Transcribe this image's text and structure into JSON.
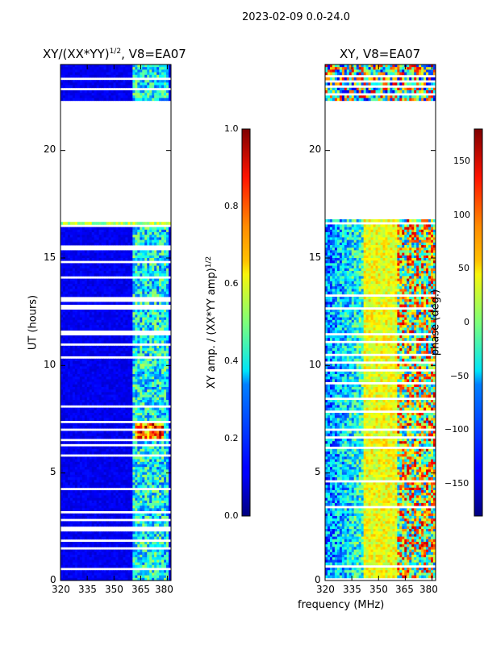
{
  "figure_title": "2023-02-09 0.0-24.0",
  "chart_data": [
    {
      "type": "heatmap",
      "title": "XY/(XX*YY)^{1/2}, V8=EA07",
      "title_base": "XY/(XX*YY)",
      "title_sup": "1/2",
      "title_suffix": ", V8=EA07",
      "xlabel": "",
      "ylabel": "UT (hours)",
      "xlim": [
        320,
        382
      ],
      "ylim": [
        0,
        24
      ],
      "xticks": [
        320,
        335,
        350,
        365,
        380
      ],
      "yticks": [
        0,
        5,
        10,
        15,
        20
      ],
      "data_bands": [
        [
          0,
          16.8
        ],
        [
          22.3,
          24
        ]
      ],
      "colorbar": {
        "label": "XY amp. / (XX*YY amp)^{1/2}",
        "label_base": "XY amp. / (XX*YY amp)",
        "label_sup": "1/2",
        "range": [
          0.0,
          1.0
        ],
        "ticks": [
          "0.0",
          "0.2",
          "0.4",
          "0.6",
          "0.8",
          "1.0"
        ]
      }
    },
    {
      "type": "heatmap",
      "title": "XY, V8=EA07",
      "xlabel": "frequency (MHz)",
      "ylabel": "",
      "xlim": [
        320,
        382
      ],
      "ylim": [
        0,
        24
      ],
      "xticks": [
        320,
        335,
        350,
        365,
        380
      ],
      "yticks": [
        0,
        5,
        10,
        15,
        20
      ],
      "data_bands": [
        [
          0,
          16.8
        ],
        [
          22.3,
          24
        ]
      ],
      "colorbar": {
        "label": "phase (deg.)",
        "range": [
          -180,
          180
        ],
        "ticks": [
          "150",
          "100",
          "50",
          "0",
          "−50",
          "−100",
          "−150"
        ],
        "tick_values": [
          150,
          100,
          50,
          0,
          -50,
          -100,
          -150
        ]
      }
    }
  ]
}
